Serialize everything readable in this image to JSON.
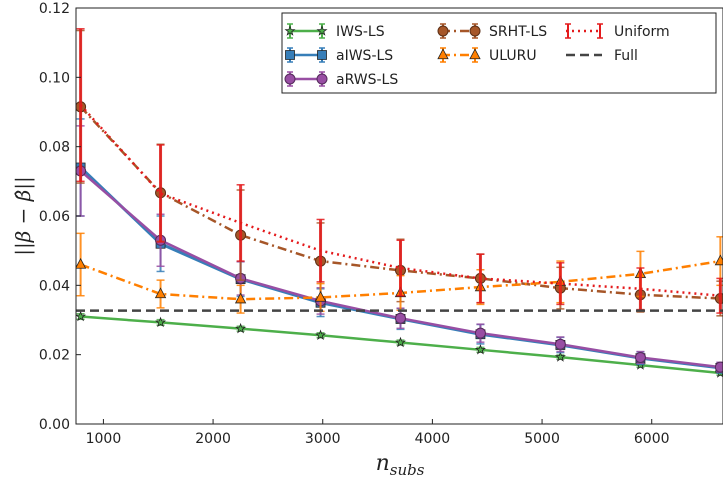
{
  "chart_data": {
    "type": "line",
    "xlabel": "n_subs",
    "ylabel": "||β − β̂||",
    "xlim": [
      750,
      6650
    ],
    "ylim": [
      0.0,
      0.12
    ],
    "xticks": [
      1000,
      2000,
      3000,
      4000,
      5000,
      6000
    ],
    "yticks": [
      0.0,
      0.02,
      0.04,
      0.06,
      0.08,
      0.1,
      0.12
    ],
    "xtick_labels": [
      "1000",
      "2000",
      "3000",
      "4000",
      "5000",
      "6000"
    ],
    "ytick_labels": [
      "0.00",
      "0.02",
      "0.04",
      "0.06",
      "0.08",
      "0.10",
      "0.12"
    ],
    "grid": false,
    "legend_position": "top-right",
    "x": [
      792,
      1521,
      2251,
      2980,
      3709,
      4438,
      5167,
      5897,
      6626
    ],
    "series": [
      {
        "name": "IWS-LS",
        "color": "#4daf4a",
        "linestyle": "solid",
        "marker": "star",
        "values": [
          0.031,
          0.0293,
          0.0275,
          0.0256,
          0.0235,
          0.0214,
          0.0193,
          0.017,
          0.0147
        ],
        "err": [
          0.0008,
          0.0008,
          0.0007,
          0.0007,
          0.0007,
          0.0007,
          0.0006,
          0.0006,
          0.0006
        ]
      },
      {
        "name": "aIWS-LS",
        "color": "#377eb8",
        "linestyle": "solid",
        "marker": "square",
        "values": [
          0.074,
          0.052,
          0.0418,
          0.035,
          0.0303,
          0.0259,
          0.0228,
          0.019,
          0.0162
        ],
        "err": [
          0.014,
          0.008,
          0.005,
          0.004,
          0.003,
          0.0028,
          0.0022,
          0.0018,
          0.0015
        ]
      },
      {
        "name": "aRWS-LS",
        "color": "#984ea3",
        "linestyle": "solid",
        "marker": "circle",
        "values": [
          0.073,
          0.053,
          0.042,
          0.0355,
          0.0305,
          0.0262,
          0.023,
          0.0192,
          0.0164
        ],
        "err": [
          0.013,
          0.0075,
          0.0048,
          0.0038,
          0.0029,
          0.0026,
          0.0021,
          0.0017,
          0.0014
        ]
      },
      {
        "name": "SRHT-LS",
        "color": "#a65628",
        "linestyle": "dashdot",
        "marker": "circle",
        "values": [
          0.0915,
          0.0667,
          0.0545,
          0.047,
          0.0443,
          0.042,
          0.0392,
          0.0373,
          0.0362
        ],
        "err": [
          0.022,
          0.014,
          0.013,
          0.011,
          0.009,
          0.007,
          0.006,
          0.005,
          0.005
        ]
      },
      {
        "name": "ULURU",
        "color": "#ff7f00",
        "linestyle": "dashdot",
        "marker": "triangle",
        "values": [
          0.046,
          0.0375,
          0.036,
          0.0365,
          0.0378,
          0.0395,
          0.041,
          0.0433,
          0.047
        ],
        "err": [
          0.009,
          0.004,
          0.004,
          0.004,
          0.005,
          0.005,
          0.006,
          0.0065,
          0.007
        ]
      },
      {
        "name": "Uniform",
        "color": "#e41a1c",
        "linestyle": "dotted",
        "marker": "none",
        "values": [
          0.092,
          0.0665,
          0.058,
          0.05,
          0.045,
          0.042,
          0.0405,
          0.039,
          0.037
        ],
        "err": [
          0.022,
          0.014,
          0.011,
          0.009,
          0.008,
          0.007,
          0.006,
          0.006,
          0.005
        ]
      },
      {
        "name": "Full",
        "color": "#444444",
        "linestyle": "dashed",
        "marker": "none",
        "values": [
          0.0327,
          0.0327,
          0.0327,
          0.0327,
          0.0327,
          0.0327,
          0.0327,
          0.0327,
          0.0327
        ]
      }
    ]
  }
}
